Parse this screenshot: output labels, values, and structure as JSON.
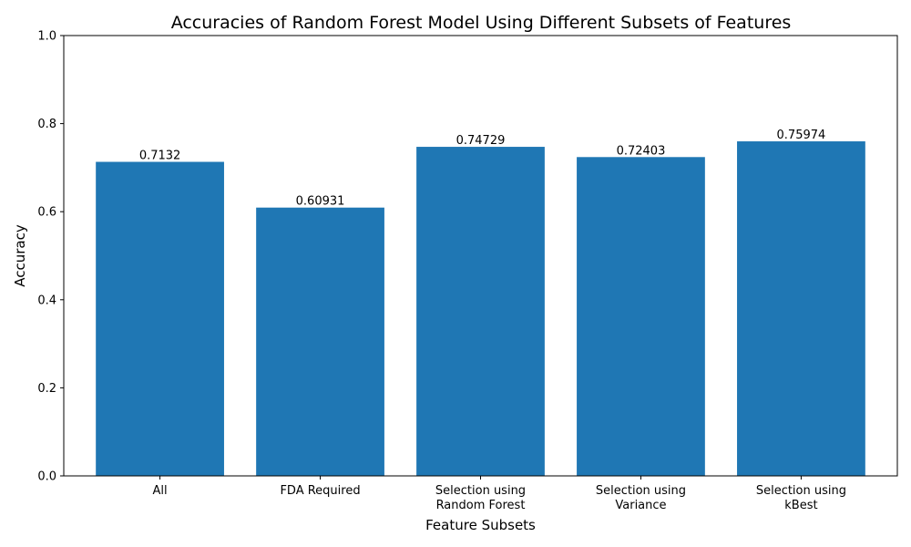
{
  "chart_data": {
    "type": "bar",
    "title": "Accuracies of Random Forest Model Using Different Subsets of Features",
    "xlabel": "Feature Subsets",
    "ylabel": "Accuracy",
    "categories": [
      [
        "All"
      ],
      [
        "FDA Required"
      ],
      [
        "Selection using",
        "Random Forest"
      ],
      [
        "Selection using",
        "Variance"
      ],
      [
        "Selection using",
        "kBest"
      ]
    ],
    "values": [
      0.7132,
      0.60931,
      0.74729,
      0.72403,
      0.75974
    ],
    "value_labels": [
      "0.7132",
      "0.60931",
      "0.74729",
      "0.72403",
      "0.75974"
    ],
    "ylim": [
      0,
      1
    ],
    "yticks": [
      "0.0",
      "0.2",
      "0.4",
      "0.6",
      "0.8",
      "1.0"
    ],
    "grid": false,
    "bar_color": "#1f77b4"
  }
}
